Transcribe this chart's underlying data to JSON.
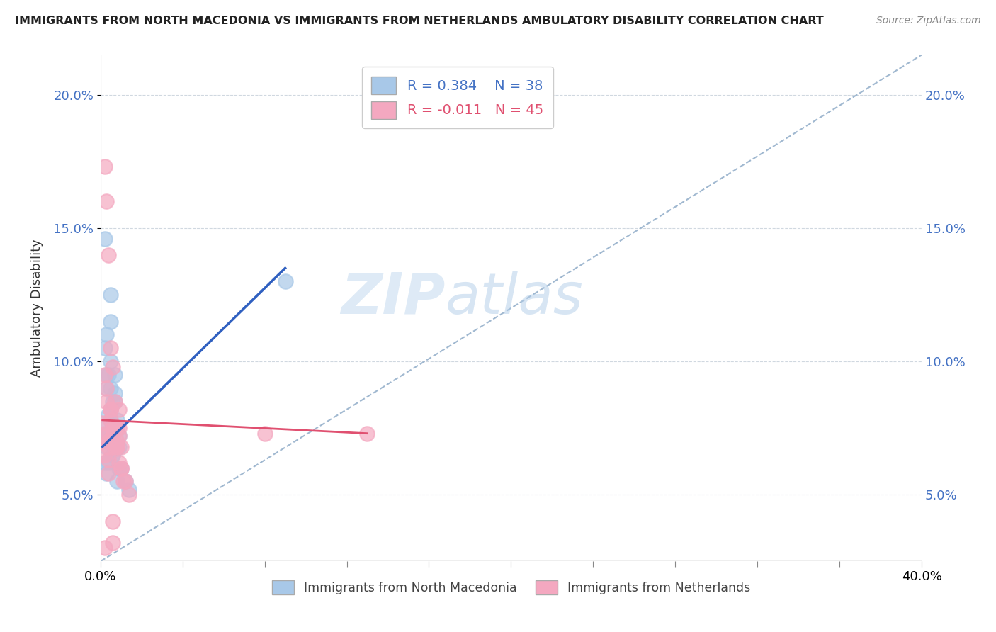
{
  "title": "IMMIGRANTS FROM NORTH MACEDONIA VS IMMIGRANTS FROM NETHERLANDS AMBULATORY DISABILITY CORRELATION CHART",
  "source": "Source: ZipAtlas.com",
  "ylabel": "Ambulatory Disability",
  "y_ticks": [
    0.05,
    0.1,
    0.15,
    0.2
  ],
  "y_tick_labels": [
    "5.0%",
    "10.0%",
    "15.0%",
    "20.0%"
  ],
  "x_ticks": [
    0.0,
    0.04,
    0.08,
    0.12,
    0.16,
    0.2,
    0.24,
    0.28,
    0.32,
    0.36,
    0.4
  ],
  "xlim": [
    0.0,
    0.4
  ],
  "ylim": [
    0.025,
    0.215
  ],
  "legend_r1": "R = 0.384",
  "legend_n1": "N = 38",
  "legend_r2": "R = -0.011",
  "legend_n2": "N = 45",
  "color_blue": "#a8c8e8",
  "color_pink": "#f4a8c0",
  "color_blue_line": "#3060c0",
  "color_pink_line": "#e05070",
  "color_dashed_line": "#a0b8d0",
  "watermark_zip": "ZIP",
  "watermark_atlas": "atlas",
  "blue_scatter_x": [
    0.002,
    0.004,
    0.003,
    0.005,
    0.004,
    0.006,
    0.005,
    0.007,
    0.006,
    0.001,
    0.003,
    0.004,
    0.005,
    0.006,
    0.008,
    0.009,
    0.002,
    0.003,
    0.004,
    0.005,
    0.007,
    0.008,
    0.009,
    0.002,
    0.003,
    0.005,
    0.002,
    0.004,
    0.006,
    0.008,
    0.01,
    0.012,
    0.014,
    0.09,
    0.003,
    0.005,
    0.007,
    0.009
  ],
  "blue_scatter_y": [
    0.146,
    0.08,
    0.11,
    0.125,
    0.095,
    0.075,
    0.09,
    0.085,
    0.065,
    0.072,
    0.068,
    0.073,
    0.1,
    0.085,
    0.078,
    0.072,
    0.062,
    0.058,
    0.062,
    0.115,
    0.088,
    0.068,
    0.06,
    0.105,
    0.095,
    0.082,
    0.075,
    0.072,
    0.065,
    0.055,
    0.06,
    0.055,
    0.052,
    0.13,
    0.09,
    0.078,
    0.095,
    0.068
  ],
  "pink_scatter_x": [
    0.002,
    0.003,
    0.004,
    0.005,
    0.006,
    0.007,
    0.008,
    0.009,
    0.01,
    0.001,
    0.003,
    0.004,
    0.005,
    0.006,
    0.008,
    0.009,
    0.002,
    0.004,
    0.004,
    0.006,
    0.007,
    0.008,
    0.01,
    0.002,
    0.003,
    0.005,
    0.002,
    0.004,
    0.006,
    0.008,
    0.01,
    0.012,
    0.014,
    0.13,
    0.003,
    0.005,
    0.007,
    0.009,
    0.011,
    0.004,
    0.006,
    0.009,
    0.002,
    0.006,
    0.08
  ],
  "pink_scatter_y": [
    0.173,
    0.16,
    0.14,
    0.105,
    0.098,
    0.085,
    0.075,
    0.082,
    0.068,
    0.077,
    0.072,
    0.07,
    0.078,
    0.072,
    0.068,
    0.072,
    0.065,
    0.063,
    0.068,
    0.075,
    0.075,
    0.07,
    0.06,
    0.095,
    0.085,
    0.082,
    0.073,
    0.07,
    0.072,
    0.068,
    0.06,
    0.055,
    0.05,
    0.073,
    0.09,
    0.082,
    0.068,
    0.062,
    0.055,
    0.058,
    0.032,
    0.075,
    0.03,
    0.04,
    0.073
  ],
  "blue_line_x": [
    0.001,
    0.09
  ],
  "blue_line_y": [
    0.068,
    0.135
  ],
  "pink_line_x": [
    0.001,
    0.13
  ],
  "pink_line_y": [
    0.078,
    0.073
  ],
  "dashed_line_x": [
    0.0,
    0.4
  ],
  "dashed_line_y": [
    0.025,
    0.215
  ]
}
